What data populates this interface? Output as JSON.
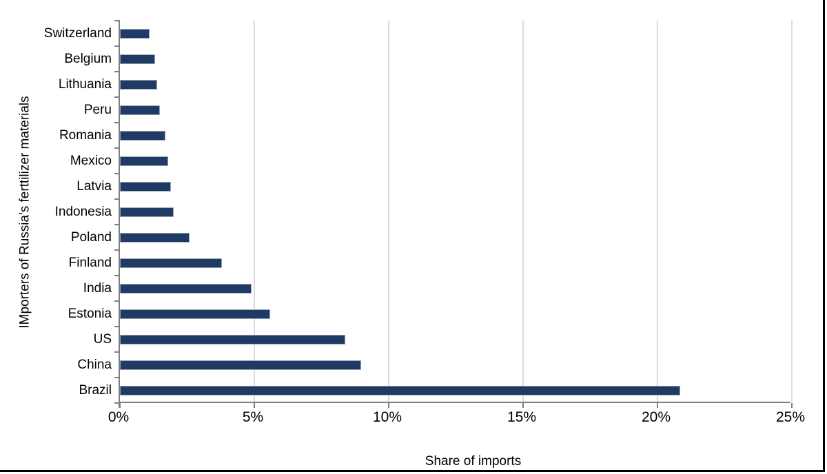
{
  "chart_data": {
    "type": "bar",
    "orientation": "horizontal",
    "title": "",
    "xlabel": "Share of imports",
    "ylabel": "IMporters of Russia's ferttilizer materials",
    "unit": "%",
    "xlim": [
      0,
      25
    ],
    "x_ticks": [
      "0%",
      "5%",
      "10%",
      "15%",
      "20%",
      "25%"
    ],
    "x_tick_values": [
      0,
      5,
      10,
      15,
      20,
      25
    ],
    "grid": "vertical-gridlines-on",
    "legend": "none",
    "categories_top_to_bottom": [
      "Switzerland",
      "Belgium",
      "Lithuania",
      "Peru",
      "Romania",
      "Mexico",
      "Latvia",
      "Indonesia",
      "Poland",
      "Finland",
      "India",
      "Estonia",
      "US",
      "China",
      "Brazil"
    ],
    "values": [
      1.1,
      1.3,
      1.4,
      1.5,
      1.7,
      1.8,
      1.9,
      2.0,
      2.6,
      3.8,
      4.9,
      5.6,
      8.4,
      9.0,
      20.9
    ],
    "colors": {
      "bar_fill": "#1f3a64",
      "bar_border": "#96a0b5",
      "gridline": "#dbdbdb",
      "axis_line": "#7f7f7f",
      "text": "#000000",
      "background": "#ffffff",
      "frame_border": "#000000"
    }
  }
}
